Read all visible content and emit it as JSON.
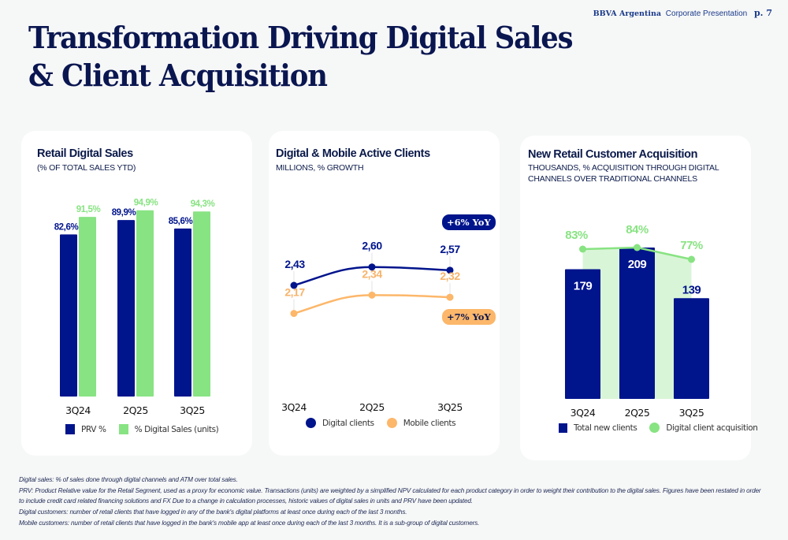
{
  "header": {
    "brand": "BBVA Argentina",
    "doc_title": "Corporate Presentation",
    "page": "p. 7"
  },
  "title_line1": "Transformation Driving Digital Sales",
  "title_line2": "& Client Acquisition",
  "colors": {
    "navy": "#00148c",
    "green": "#88e382",
    "light_green": "#d9f5d7",
    "orange": "#fcb76a",
    "orange_text": "#f7b36a",
    "title": "#0a1650"
  },
  "chart_data": [
    {
      "type": "bar",
      "title": "Retail Digital Sales",
      "subtitle": "(% OF TOTAL SALES YTD)",
      "categories": [
        "3Q24",
        "2Q25",
        "3Q25"
      ],
      "series": [
        {
          "name": "PRV %",
          "values": [
            82.6,
            89.9,
            85.6
          ],
          "labels": [
            "82,6%",
            "89,9%",
            "85,6%"
          ]
        },
        {
          "name": "% Digital Sales (units)",
          "values": [
            91.5,
            94.9,
            94.3
          ],
          "labels": [
            "91,5%",
            "94,9%",
            "94,3%"
          ]
        }
      ],
      "ylim": [
        0,
        100
      ],
      "grid": false,
      "legend": "bottom"
    },
    {
      "type": "line",
      "title": "Digital & Mobile Active Clients",
      "subtitle": "MILLIONS, % GROWTH",
      "categories": [
        "3Q24",
        "2Q25",
        "3Q25"
      ],
      "series": [
        {
          "name": "Digital clients",
          "values": [
            2.43,
            2.6,
            2.57
          ],
          "labels": [
            "2,43",
            "2,60",
            "2,57"
          ],
          "growth": "+6% YoY"
        },
        {
          "name": "Mobile clients",
          "values": [
            2.17,
            2.34,
            2.32
          ],
          "labels": [
            "2,17",
            "2,34",
            "2,32"
          ],
          "growth": "+7% YoY"
        }
      ],
      "grid": false,
      "legend": "bottom"
    },
    {
      "type": "bar",
      "title": "New Retail Customer Acquisition",
      "subtitle_line1": "THOUSANDS, % ACQUISITION THROUGH DIGITAL",
      "subtitle_line2": "CHANNELS OVER TRADITIONAL CHANNELS",
      "categories": [
        "3Q24",
        "2Q25",
        "3Q25"
      ],
      "series": [
        {
          "name": "Total new clients",
          "values": [
            179,
            209,
            139
          ],
          "labels": [
            "179",
            "209",
            "139"
          ]
        },
        {
          "name": "Digital client acquisition",
          "values": [
            83,
            84,
            77
          ],
          "labels": [
            "83%",
            "84%",
            "77%"
          ],
          "unit": "%"
        }
      ],
      "grid": false,
      "legend": "bottom"
    }
  ],
  "footnotes": [
    "Digital sales: % of sales done through digital channels and ATM over total sales.",
    "PRV: Product Relative value for the Retail Segment, used as a proxy for economic value. Transactions (units) are weighted by a simplified NPV calculated for each product category in order to weight their contribution to the digital sales. Figures have been restated in order to include credit card related financing solutions and FX Due to a change in calculation processes, historic values of digital sales in units and PRV have been updated.",
    "Digital customers: number of retail clients that have logged in any of the bank's digital platforms at least once during each of the last 3 months.",
    "Mobile customers: number of retail clients that have logged in the bank's  mobile app at least once during each of the last 3 months. It is a sub-group of digital customers."
  ]
}
